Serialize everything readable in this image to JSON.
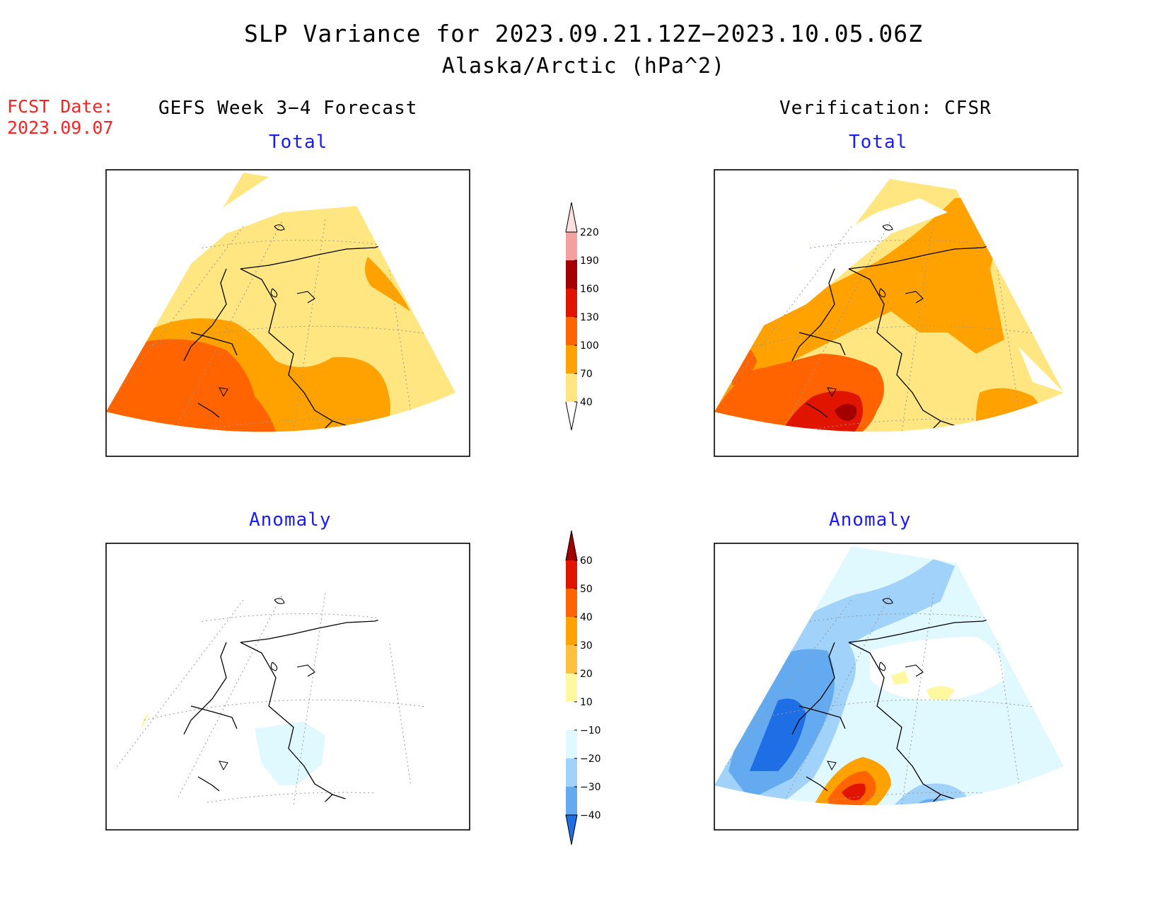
{
  "title": "SLP Variance for 2023.09.21.12Z−2023.10.05.06Z",
  "subtitle": "Alaska/Arctic (hPa^2)",
  "fcst_date": {
    "label": "FCST Date:",
    "value": "2023.09.07"
  },
  "columns": {
    "left": "GEFS Week 3−4 Forecast",
    "right": "Verification: CFSR"
  },
  "panels": {
    "forecast_total": "Total",
    "verification_total": "Total",
    "forecast_anomaly": "Anomaly",
    "verification_anomaly": "Anomaly"
  },
  "colorbars": {
    "total": {
      "levels": [
        "40",
        "70",
        "100",
        "130",
        "160",
        "190",
        "220"
      ],
      "colors": [
        "#ffe680",
        "#ffa200",
        "#ff6400",
        "#e11400",
        "#a50000",
        "#f5a0a0",
        "#ffe0e0"
      ]
    },
    "anomaly": {
      "levels": [
        "60",
        "50",
        "40",
        "30",
        "20",
        "10",
        "−10",
        "−20",
        "−30",
        "−40"
      ],
      "colors": [
        "#a50000",
        "#e11400",
        "#ff6400",
        "#ffa200",
        "#ffc040",
        "#fff8a0",
        "#ffffff",
        "#e0f8ff",
        "#a0d2fa",
        "#64aaf0",
        "#1e6ee6"
      ]
    }
  }
}
